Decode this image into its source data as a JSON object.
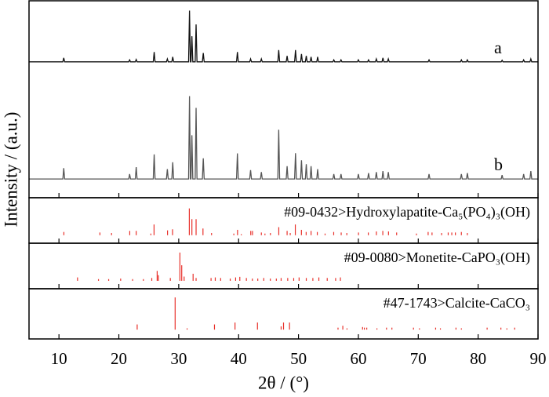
{
  "chart_data": [
    {
      "type": "line",
      "ylabel": "Intensity / (a.u.)",
      "ylim": [
        0,
        100
      ],
      "series": [
        {
          "name": "a",
          "color": "#111111",
          "x": [
            5,
            10.65,
            10.8,
            10.95,
            21.65,
            21.8,
            21.95,
            22.75,
            22.9,
            23.05,
            25.75,
            25.9,
            26.05,
            27.95,
            28.1,
            28.25,
            28.85,
            29.0,
            29.15,
            31.65,
            31.8,
            31.95,
            32.05,
            32.2,
            32.35,
            32.75,
            32.9,
            33.05,
            33.95,
            34.1,
            34.25,
            39.65,
            39.8,
            39.95,
            41.85,
            42.0,
            42.15,
            43.65,
            43.8,
            43.95,
            46.55,
            46.7,
            46.85,
            47.95,
            48.1,
            48.25,
            49.35,
            49.5,
            49.65,
            50.35,
            50.5,
            50.65,
            51.15,
            51.3,
            51.45,
            51.95,
            52.1,
            52.25,
            53.05,
            53.2,
            53.35,
            55.75,
            55.9,
            56.05,
            56.95,
            57.1,
            57.25,
            59.85,
            60.0,
            60.15,
            61.55,
            61.7,
            61.85,
            62.85,
            63.0,
            63.15,
            63.95,
            64.1,
            64.25,
            64.85,
            65.0,
            65.15,
            71.65,
            71.8,
            71.95,
            77.05,
            77.2,
            77.35,
            78.05,
            78.2,
            78.35,
            83.85,
            84.0,
            84.15,
            87.45,
            87.6,
            87.75,
            88.65,
            88.8,
            88.95,
            90
          ],
          "values": [
            69,
            69,
            71,
            69,
            69,
            70,
            69,
            69,
            70.2,
            69,
            69,
            74,
            69,
            69,
            70.5,
            69,
            69,
            71.5,
            69,
            69,
            95,
            69,
            69,
            82,
            69,
            69,
            88,
            69,
            69,
            73.5,
            69,
            69,
            74,
            69,
            69,
            70.5,
            69,
            69,
            70.5,
            69,
            69,
            75,
            69,
            69,
            72,
            69,
            69,
            75,
            69,
            69,
            73,
            69,
            69,
            72,
            69,
            69,
            71.5,
            69,
            69,
            71.5,
            69,
            69,
            70,
            69,
            69,
            70,
            69,
            69,
            70,
            69,
            69,
            70,
            69,
            69,
            70.5,
            69,
            69,
            71,
            69,
            69,
            70.5,
            69,
            69,
            70,
            69,
            69,
            70,
            69,
            69,
            70,
            69,
            69,
            69.8,
            69,
            69,
            70,
            69,
            69,
            70.5,
            69,
            69
          ]
        },
        {
          "name": "b",
          "color": "#555555",
          "x": [
            5,
            10.65,
            10.8,
            10.95,
            21.65,
            21.8,
            21.95,
            22.75,
            22.9,
            23.05,
            25.75,
            25.9,
            26.05,
            27.95,
            28.1,
            28.25,
            28.85,
            29.0,
            29.15,
            31.65,
            31.8,
            31.95,
            32.05,
            32.2,
            32.35,
            32.75,
            32.9,
            33.05,
            33.95,
            34.1,
            34.25,
            39.65,
            39.8,
            39.95,
            41.85,
            42.0,
            42.15,
            43.65,
            43.8,
            43.95,
            46.55,
            46.7,
            46.85,
            47.95,
            48.1,
            48.25,
            49.35,
            49.5,
            49.65,
            50.35,
            50.5,
            50.65,
            51.15,
            51.3,
            51.45,
            51.95,
            52.1,
            52.25,
            53.05,
            53.2,
            53.35,
            55.75,
            55.9,
            56.05,
            56.95,
            57.1,
            57.25,
            59.85,
            60.0,
            60.15,
            61.55,
            61.7,
            61.85,
            62.85,
            63.0,
            63.15,
            63.95,
            64.1,
            64.25,
            64.85,
            65.0,
            65.15,
            71.65,
            71.8,
            71.95,
            77.05,
            77.2,
            77.35,
            78.05,
            78.2,
            78.35,
            83.85,
            84.0,
            84.15,
            87.45,
            87.6,
            87.75,
            88.65,
            88.8,
            88.95,
            90
          ],
          "values": [
            9.5,
            9.5,
            15,
            9.5,
            9.5,
            12,
            9.5,
            9.5,
            15.5,
            9.5,
            9.5,
            22,
            9.5,
            9.5,
            14.5,
            9.5,
            9.5,
            18,
            9.5,
            9.5,
            51.6,
            9.5,
            9.5,
            31.7,
            9.5,
            9.5,
            45.6,
            9.5,
            9.5,
            20,
            9.5,
            9.5,
            22.5,
            9.5,
            9.5,
            14,
            9.5,
            9.5,
            13,
            9.5,
            9.5,
            34.5,
            9.5,
            9.5,
            16,
            9.5,
            9.5,
            22.6,
            9.5,
            9.5,
            19,
            9.5,
            9.5,
            17,
            9.5,
            9.5,
            16,
            9.5,
            9.5,
            14.5,
            9.5,
            9.5,
            12,
            9.5,
            9.5,
            12,
            9.5,
            9.5,
            12,
            9.5,
            9.5,
            12.5,
            9.5,
            9.5,
            13,
            9.5,
            9.5,
            13.5,
            9.5,
            9.5,
            13,
            9.5,
            9.5,
            12,
            9.5,
            9.5,
            12,
            9.5,
            9.5,
            12.5,
            9.5,
            9.5,
            11.5,
            9.5,
            9.5,
            12,
            9.5,
            9.5,
            13.5,
            9.5,
            9.5
          ]
        }
      ]
    },
    {
      "type": "stick",
      "title": "#09-0432>Hydroxylapatite-Ca₅(PO₄)₃(OH)",
      "color": "#e8302a",
      "ylim": [
        -30,
        140
      ],
      "x": [
        10.82,
        16.84,
        18.78,
        21.82,
        22.9,
        25.35,
        25.88,
        28.13,
        28.97,
        31.77,
        32.2,
        32.9,
        34.05,
        35.48,
        39.2,
        39.82,
        40.45,
        42.03,
        42.32,
        43.8,
        44.4,
        45.31,
        46.71,
        48.1,
        48.62,
        49.47,
        50.49,
        51.28,
        52.1,
        53.14,
        54.44,
        55.88,
        57.13,
        58.07,
        60.02,
        61.66,
        63.01,
        64.08,
        65.03,
        66.39,
        69.7,
        71.65,
        72.3,
        73.9,
        75.0,
        75.6,
        76.2,
        77.2,
        78.2
      ],
      "values": [
        12,
        10,
        8,
        16,
        16,
        6,
        40,
        18,
        22,
        100,
        60,
        60,
        25,
        8,
        6,
        20,
        4,
        16,
        16,
        10,
        6,
        8,
        30,
        16,
        8,
        40,
        20,
        12,
        16,
        12,
        6,
        12,
        10,
        8,
        10,
        10,
        14,
        16,
        14,
        10,
        6,
        12,
        10,
        8,
        10,
        10,
        10,
        12,
        8
      ]
    },
    {
      "type": "stick",
      "title": "#09-0080>Monetite-CaPO₃(OH)",
      "color": "#e8302a",
      "ylim": [
        -28,
        133
      ],
      "x": [
        13.1,
        16.6,
        18.3,
        20.3,
        22.3,
        24.1,
        25.5,
        26.4,
        26.6,
        28.6,
        30.2,
        30.5,
        30.9,
        32.4,
        32.9,
        35.4,
        36.1,
        37.0,
        38.6,
        39.5,
        40.2,
        41.3,
        42.3,
        43.2,
        44.2,
        45.3,
        46.3,
        47.1,
        48.2,
        49.2,
        50.1,
        51.3,
        52.4,
        53.4,
        54.8,
        56.2,
        57.0
      ],
      "values": [
        12,
        6,
        6,
        8,
        6,
        6,
        10,
        35,
        20,
        10,
        100,
        55,
        15,
        25,
        10,
        10,
        12,
        10,
        8,
        12,
        14,
        10,
        8,
        8,
        10,
        8,
        8,
        10,
        10,
        10,
        12,
        10,
        10,
        12,
        10,
        10,
        12
      ]
    },
    {
      "type": "stick",
      "title": "#47-1743>Calcite-CaCO₃",
      "color": "#e8302a",
      "ylim": [
        -29,
        127
      ],
      "xlabel": "2θ / (°)",
      "xlim": [
        5,
        90
      ],
      "xticks": [
        10,
        20,
        30,
        40,
        50,
        60,
        70,
        80,
        90
      ],
      "x": [
        23.06,
        29.4,
        31.4,
        35.97,
        39.4,
        43.15,
        47.1,
        47.5,
        48.5,
        56.6,
        57.4,
        58.1,
        60.7,
        61.0,
        61.4,
        63.1,
        64.7,
        65.6,
        69.2,
        70.2,
        72.9,
        73.7,
        76.3,
        77.2,
        81.5,
        83.8,
        84.8,
        86.1
      ],
      "values": [
        16,
        100,
        4,
        16,
        22,
        22,
        10,
        22,
        22,
        6,
        12,
        4,
        8,
        6,
        6,
        4,
        6,
        6,
        6,
        4,
        6,
        4,
        6,
        4,
        6,
        6,
        4,
        6
      ]
    }
  ]
}
